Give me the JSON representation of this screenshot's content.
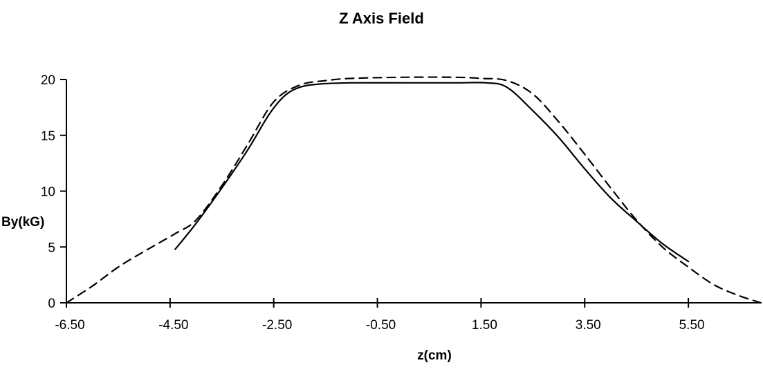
{
  "chart_data": {
    "type": "line",
    "title": "Z Axis Field",
    "xlabel": "z(cm)",
    "ylabel": "By(kG)",
    "xlim": [
      -6.5,
      6.9
    ],
    "ylim": [
      0,
      20
    ],
    "x_ticks": [
      -6.5,
      -4.5,
      -2.5,
      -0.5,
      1.5,
      3.5,
      5.5
    ],
    "x_tick_labels": [
      "-6.50",
      "-4.50",
      "-2.50",
      "-0.50",
      "1.50",
      "3.50",
      "5.50"
    ],
    "y_ticks": [
      0,
      5,
      10,
      15,
      20
    ],
    "y_tick_labels": [
      "0",
      "5",
      "10",
      "15",
      "20"
    ],
    "grid": false,
    "legend": "none",
    "series": [
      {
        "style": "solid",
        "color": "#000000",
        "x": [
          -4.4,
          -4.0,
          -3.5,
          -3.0,
          -2.6,
          -2.3,
          -2.0,
          -1.6,
          -1.0,
          0.0,
          1.0,
          1.6,
          2.0,
          2.5,
          3.0,
          3.5,
          4.0,
          4.5,
          5.0,
          5.5
        ],
        "y": [
          4.8,
          7.1,
          10.3,
          13.7,
          16.8,
          18.5,
          19.3,
          19.6,
          19.7,
          19.7,
          19.7,
          19.7,
          19.3,
          17.2,
          14.8,
          12.0,
          9.4,
          7.3,
          5.3,
          3.7
        ]
      },
      {
        "style": "dashed",
        "color": "#000000",
        "x": [
          -6.5,
          -6.0,
          -5.5,
          -5.0,
          -4.4,
          -4.0,
          -3.5,
          -3.0,
          -2.5,
          -2.0,
          -1.5,
          -1.0,
          0.0,
          1.0,
          1.5,
          2.0,
          2.5,
          3.0,
          3.5,
          4.0,
          4.5,
          5.0,
          5.5,
          6.0,
          6.5,
          6.9
        ],
        "y": [
          0.0,
          1.5,
          3.2,
          4.6,
          6.2,
          7.4,
          10.5,
          14.2,
          18.0,
          19.5,
          19.9,
          20.1,
          20.2,
          20.2,
          20.1,
          19.9,
          18.7,
          16.2,
          13.3,
          10.3,
          7.4,
          5.0,
          3.2,
          1.6,
          0.6,
          0.0
        ]
      }
    ]
  }
}
